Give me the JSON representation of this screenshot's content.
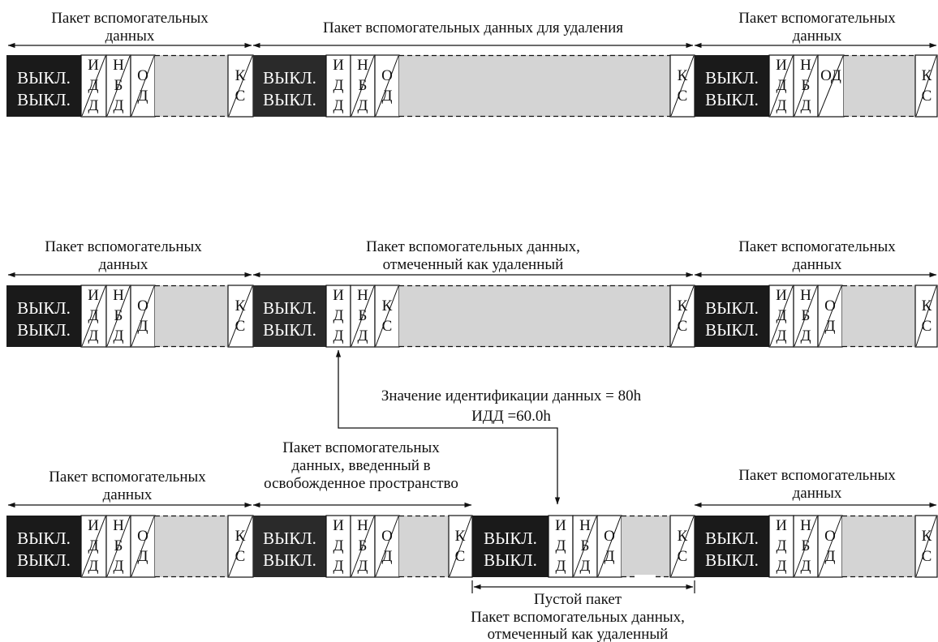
{
  "labels": {
    "anc_packet_1": "Пакет вспомогательных",
    "anc_packet_2": "данных",
    "to_delete": "Пакет вспомогательных данных для удаления",
    "marked_1": "Пакет вспомогательных данных,",
    "marked_2": "отмеченный как удаленный",
    "inserted_1": "Пакет вспомогательных",
    "inserted_2": "данных, введенный в",
    "inserted_3": "освобожденное пространство",
    "empty_packet": "Пустой пакет",
    "did_value": "Значение идентификации данных = 80h",
    "did_code": "ИДД =60.0h"
  },
  "cells": {
    "off": "ВЫКЛ.",
    "did": [
      "И",
      "Д",
      "Д"
    ],
    "sdid": [
      "Н",
      "Б",
      "Д"
    ],
    "dc": [
      "О",
      "Д"
    ],
    "dc_inline": "ОД",
    "cs": [
      "К",
      "С"
    ]
  },
  "colors": {
    "header_block": "#1a1a1a",
    "header_block_alt": "#2a2a2a",
    "user_data_fill": "#d4d4d4",
    "line": "#111111",
    "background": "#ffffff"
  }
}
